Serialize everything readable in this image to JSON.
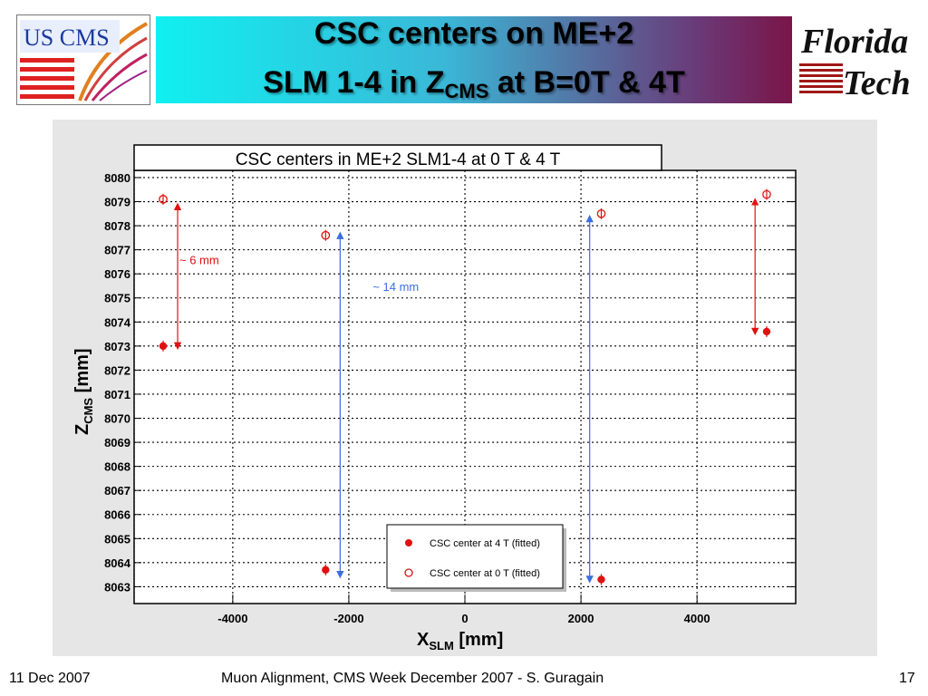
{
  "slide": {
    "title_line1": "CSC centers on ME+2",
    "title_line2_pre": "SLM 1-4 in Z",
    "title_line2_sub": "CMS",
    "title_line2_post": " at B=0T & 4T",
    "logo_left_text": "US CMS",
    "logo_right_line1": "Florida",
    "logo_right_line2": "Tech",
    "footer_date": "11 Dec 2007",
    "footer_center": "Muon Alignment, CMS Week December 2007  - S. Guragain",
    "page_number": "17"
  },
  "colors": {
    "red": "#e01010",
    "blue": "#3a6ee0"
  },
  "chart_data": {
    "type": "scatter",
    "title": "CSC centers in ME+2 SLM1-4 at 0 T & 4 T",
    "xlabel_main": "X",
    "xlabel_sub": "SLM",
    "xlabel_unit": " [mm]",
    "ylabel_main": "Z",
    "ylabel_sub": "CMS",
    "ylabel_unit": " [mm]",
    "xlim": [
      -5700,
      5700
    ],
    "ylim": [
      8062.3,
      8080.3
    ],
    "xticks": [
      -4000,
      -2000,
      0,
      2000,
      4000
    ],
    "yticks": [
      8063,
      8064,
      8065,
      8066,
      8067,
      8068,
      8069,
      8070,
      8071,
      8072,
      8073,
      8074,
      8075,
      8076,
      8077,
      8078,
      8079,
      8080
    ],
    "grid": true,
    "legend_position": "bottom-right",
    "series": [
      {
        "name": "CSC center at 4 T (fitted)",
        "marker": "filled-circle",
        "points": [
          {
            "x": -5200,
            "y": 8073.0
          },
          {
            "x": -2400,
            "y": 8063.7
          },
          {
            "x": 2350,
            "y": 8063.3
          },
          {
            "x": 5200,
            "y": 8073.6
          }
        ]
      },
      {
        "name": "CSC center at 0 T (fitted)",
        "marker": "open-circle",
        "points": [
          {
            "x": -5200,
            "y": 8079.1
          },
          {
            "x": -2400,
            "y": 8077.6
          },
          {
            "x": 2350,
            "y": 8078.5
          },
          {
            "x": 5200,
            "y": 8079.3
          }
        ]
      }
    ],
    "annotations": [
      {
        "text": "~ 6 mm",
        "color": "red",
        "x": -4950,
        "y1": 8078.8,
        "y2": 8073.0
      },
      {
        "text": "~ 14 mm",
        "color": "blue",
        "x": -2150,
        "y1": 8077.6,
        "y2": 8063.5
      }
    ],
    "extra_arrows": [
      {
        "color": "blue",
        "x": 2150,
        "y1": 8078.3,
        "y2": 8063.3
      },
      {
        "color": "red",
        "x": 5000,
        "y1": 8079.0,
        "y2": 8073.6
      }
    ]
  }
}
